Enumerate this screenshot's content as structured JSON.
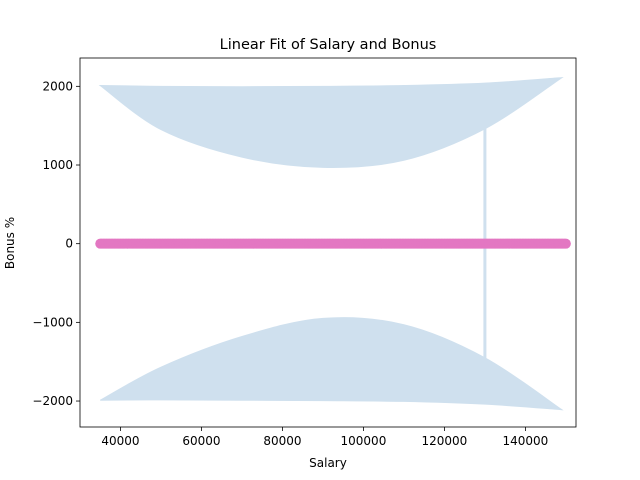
{
  "chart_data": {
    "type": "scatter",
    "title": "Linear Fit of Salary and Bonus",
    "xlabel": "Salary",
    "ylabel": "Bonus %",
    "xlim": [
      30000,
      152500
    ],
    "ylim": [
      -2330,
      2360
    ],
    "xticks": [
      40000,
      60000,
      80000,
      100000,
      120000,
      140000
    ],
    "yticks": [
      -2000,
      -1000,
      0,
      1000,
      2000
    ],
    "xtick_labels": [
      "40000",
      "60000",
      "80000",
      "100000",
      "120000",
      "140000"
    ],
    "ytick_labels": [
      "−2000",
      "−1000",
      "0",
      "1000",
      "2000"
    ],
    "grid": false,
    "legend": "none",
    "colors": {
      "points": "#e377c2",
      "fit_band": "#cfe0ee",
      "axes": "#000000"
    },
    "series": [
      {
        "kind": "points",
        "x_range": [
          35000,
          150000
        ],
        "y_value": 0,
        "approx_count": 300
      },
      {
        "kind": "fit-band-upper",
        "x": [
          35000,
          50000,
          70000,
          90000,
          110000,
          130000,
          149000
        ],
        "y_outer": [
          2010,
          2000,
          1995,
          2000,
          2010,
          2040,
          2110
        ],
        "y_inner": [
          2010,
          1450,
          1100,
          970,
          1060,
          1460,
          2110
        ]
      },
      {
        "kind": "fit-band-lower",
        "x": [
          35000,
          50000,
          70000,
          90000,
          110000,
          130000,
          149000
        ],
        "y_outer": [
          -1990,
          -1985,
          -1990,
          -1995,
          -2005,
          -2040,
          -2110
        ],
        "y_inner": [
          -1990,
          -1570,
          -1180,
          -950,
          -1030,
          -1450,
          -2110
        ]
      },
      {
        "kind": "vertical-line",
        "x": 130000,
        "y_range": [
          -1640,
          1640
        ]
      }
    ]
  }
}
